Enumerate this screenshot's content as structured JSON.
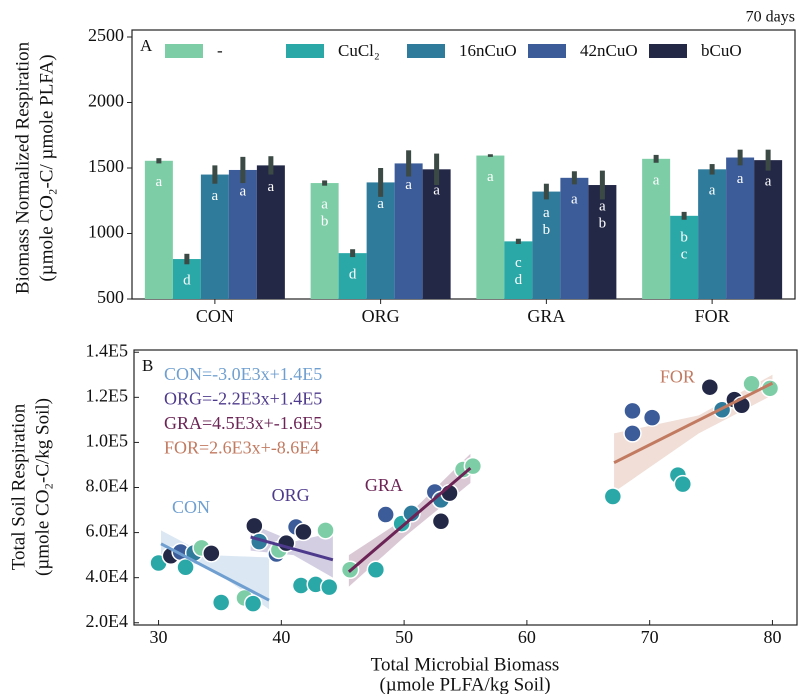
{
  "chart_data": [
    {
      "type": "bar",
      "panel_label": "A",
      "annotation": "70 days",
      "ylabel": [
        "Biomass Normalized Respiration",
        "(µmole CO₂-C/ µmole PLFA)"
      ],
      "categories": [
        "CON",
        "ORG",
        "GRA",
        "FOR"
      ],
      "series": [
        {
          "name": "-",
          "color": "#7dcea7",
          "values": [
            1555,
            1385,
            1595,
            1570
          ],
          "errors": [
            20,
            20,
            10,
            30
          ],
          "letters": [
            [
              "a"
            ],
            [
              "a",
              "b"
            ],
            [
              "a"
            ],
            [
              "a"
            ]
          ]
        },
        {
          "name": "CuCl₂",
          "color": "#2aa8a8",
          "values": [
            805,
            850,
            940,
            1135
          ],
          "errors": [
            40,
            30,
            20,
            30
          ],
          "letters": [
            [
              "d"
            ],
            [
              "d"
            ],
            [
              "c",
              "d"
            ],
            [
              "b",
              "c"
            ]
          ]
        },
        {
          "name": "16nCuO",
          "color": "#2f7b9c",
          "values": [
            1450,
            1390,
            1320,
            1490
          ],
          "errors": [
            70,
            110,
            60,
            40
          ],
          "letters": [
            [
              "a"
            ],
            [
              "a"
            ],
            [
              "a",
              "b"
            ],
            [
              "a"
            ]
          ]
        },
        {
          "name": "42nCuO",
          "color": "#3c5c99",
          "values": [
            1485,
            1535,
            1425,
            1580
          ],
          "errors": [
            100,
            100,
            50,
            60
          ],
          "letters": [
            [
              "a"
            ],
            [
              "a"
            ],
            [
              "a"
            ],
            [
              "a"
            ]
          ]
        },
        {
          "name": "bCuO",
          "color": "#232847",
          "values": [
            1520,
            1490,
            1370,
            1560
          ],
          "errors": [
            70,
            120,
            110,
            80
          ],
          "letters": [
            [
              "a"
            ],
            [
              "a"
            ],
            [
              "a",
              "b"
            ],
            [
              "a"
            ]
          ]
        }
      ],
      "ylim": [
        500,
        2500
      ],
      "yticks": [
        500,
        1000,
        1500,
        2000,
        2500
      ]
    },
    {
      "type": "scatter",
      "panel_label": "B",
      "xlabel": [
        "Total Microbial Biomass",
        "(µmole PLFA/kg Soil)"
      ],
      "ylabel": [
        "Total Soil Respiration",
        "(µmole CO₂-C/kg Soil)"
      ],
      "xlim": [
        28,
        82
      ],
      "ylim": [
        19000,
        141000
      ],
      "xticks": [
        30,
        40,
        50,
        60,
        70,
        80
      ],
      "yticks": [
        {
          "value": 20000,
          "label": "2.0E4"
        },
        {
          "value": 40000,
          "label": "4.0E4"
        },
        {
          "value": 60000,
          "label": "6.0E4"
        },
        {
          "value": 80000,
          "label": "8.0E4"
        },
        {
          "value": 100000,
          "label": "1.0E5"
        },
        {
          "value": 120000,
          "label": "1.2E5"
        },
        {
          "value": 140000,
          "label": "1.4E5"
        }
      ],
      "series": [
        {
          "name": "CON",
          "color": "#6f9fd0",
          "equation": "CON=-3.0E3x+1.4E5",
          "x": [
            30.0,
            31.0,
            31.8,
            32.2,
            32.9,
            33.5,
            34.3,
            35.1,
            37.0,
            37.7
          ],
          "y": [
            46500,
            49700,
            51400,
            44600,
            51000,
            53200,
            50800,
            29000,
            31000,
            28500
          ],
          "point_colors": [
            "#2aa8a8",
            "#232847",
            "#3c5c99",
            "#2aa8a8",
            "#2f7b9c",
            "#7dcea7",
            "#232847",
            "#2aa8a8",
            "#7dcea7",
            "#2aa8a8"
          ],
          "fit_x": [
            30.2,
            39.0
          ],
          "fit_y": [
            55000,
            30000
          ],
          "band_x": [
            30.2,
            34.0,
            39.0
          ],
          "band_lower": [
            49000,
            45000,
            26000
          ],
          "band_upper": [
            61000,
            50000,
            49000
          ]
        },
        {
          "name": "ORG",
          "color": "#4e3a8c",
          "equation": "ORG=-2.2E3x+1.4E5",
          "x": [
            37.8,
            38.2,
            39.6,
            39.8,
            40.4,
            41.2,
            41.8,
            43.6,
            41.6,
            42.8,
            43.9
          ],
          "y": [
            63000,
            56000,
            50500,
            52300,
            55300,
            62500,
            60300,
            61000,
            36500,
            37000,
            35800
          ],
          "point_colors": [
            "#232847",
            "#2f7b9c",
            "#3c5c99",
            "#7dcea7",
            "#232847",
            "#3c5c99",
            "#232847",
            "#7dcea7",
            "#2aa8a8",
            "#2aa8a8",
            "#2aa8a8"
          ],
          "fit_x": [
            37.5,
            44.2
          ],
          "fit_y": [
            58000,
            47900
          ],
          "band_x": [
            37.5,
            41.0,
            44.2
          ],
          "band_lower": [
            52000,
            50000,
            40000
          ],
          "band_upper": [
            64000,
            56000,
            60000
          ]
        },
        {
          "name": "GRA",
          "color": "#6b2455",
          "equation": "GRA=4.5E3x+-1.6E5",
          "x": [
            45.6,
            47.7,
            48.5,
            49.8,
            50.6,
            52.5,
            53.0,
            53.7,
            53.0,
            54.8,
            55.6
          ],
          "y": [
            43500,
            43500,
            68000,
            64000,
            68500,
            78000,
            74500,
            77500,
            65000,
            88000,
            89500
          ],
          "point_colors": [
            "#7dcea7",
            "#2aa8a8",
            "#3c5c99",
            "#2aa8a8",
            "#2f7b9c",
            "#3c5c99",
            "#2f7b9c",
            "#232847",
            "#232847",
            "#7dcea7",
            "#7dcea7"
          ],
          "fit_x": [
            45.5,
            55.4
          ],
          "fit_y": [
            42600,
            88600
          ],
          "band_x": [
            45.5,
            50.0,
            55.4
          ],
          "band_lower": [
            36000,
            58000,
            82000
          ],
          "band_upper": [
            50000,
            66000,
            95000
          ]
        },
        {
          "name": "FOR",
          "color": "#c27a60",
          "equation": "FOR=2.6E3x+-8.6E4",
          "x": [
            67.0,
            68.6,
            68.6,
            70.2,
            72.3,
            72.7,
            74.9,
            75.9,
            76.9,
            77.5,
            78.3,
            79.8
          ],
          "y": [
            76000,
            104000,
            114000,
            111000,
            85500,
            81500,
            124500,
            114500,
            119000,
            116500,
            126000,
            124000
          ],
          "point_colors": [
            "#2aa8a8",
            "#3c5c99",
            "#3c5c99",
            "#3c5c99",
            "#2aa8a8",
            "#2aa8a8",
            "#232847",
            "#2f7b9c",
            "#232847",
            "#232847",
            "#7dcea7",
            "#7dcea7"
          ],
          "fit_x": [
            67.1,
            80.0
          ],
          "fit_y": [
            91000,
            126300
          ],
          "band_x": [
            67.1,
            74.0,
            80.0
          ],
          "band_lower": [
            78000,
            104000,
            121000
          ],
          "band_upper": [
            104000,
            112000,
            130000
          ]
        }
      ]
    }
  ]
}
